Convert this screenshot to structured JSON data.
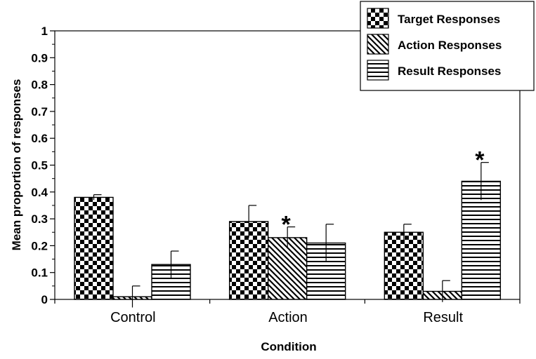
{
  "chart_data": {
    "type": "bar",
    "categories": [
      "Control",
      "Action",
      "Result"
    ],
    "series": [
      {
        "name": "Target Responses",
        "pattern": "checkerboard",
        "values": [
          0.38,
          0.29,
          0.25
        ],
        "errors": [
          0.01,
          0.06,
          0.03
        ]
      },
      {
        "name": "Action Responses",
        "pattern": "diagonal-stripes",
        "values": [
          0.01,
          0.23,
          0.03
        ],
        "errors": [
          0.04,
          0.04,
          0.04
        ]
      },
      {
        "name": "Result Responses",
        "pattern": "horizontal-stripes",
        "values": [
          0.13,
          0.21,
          0.44
        ],
        "errors": [
          0.05,
          0.07,
          0.07
        ]
      }
    ],
    "annotations": [
      {
        "text": "*",
        "category": "Action",
        "series": "Action Responses"
      },
      {
        "text": "*",
        "category": "Result",
        "series": "Result Responses"
      }
    ],
    "xlabel": "Condition",
    "ylabel": "Mean proportion of responses",
    "ylim": [
      0,
      1
    ],
    "yticks": [
      "0",
      "0.1",
      "0.2",
      "0.3",
      "0.4",
      "0.5",
      "0.6",
      "0.7",
      "0.8",
      "0.9",
      "1"
    ],
    "grid": false,
    "legend_position": "top-right",
    "colors": {
      "ink": "#000000",
      "background": "#ffffff"
    }
  }
}
